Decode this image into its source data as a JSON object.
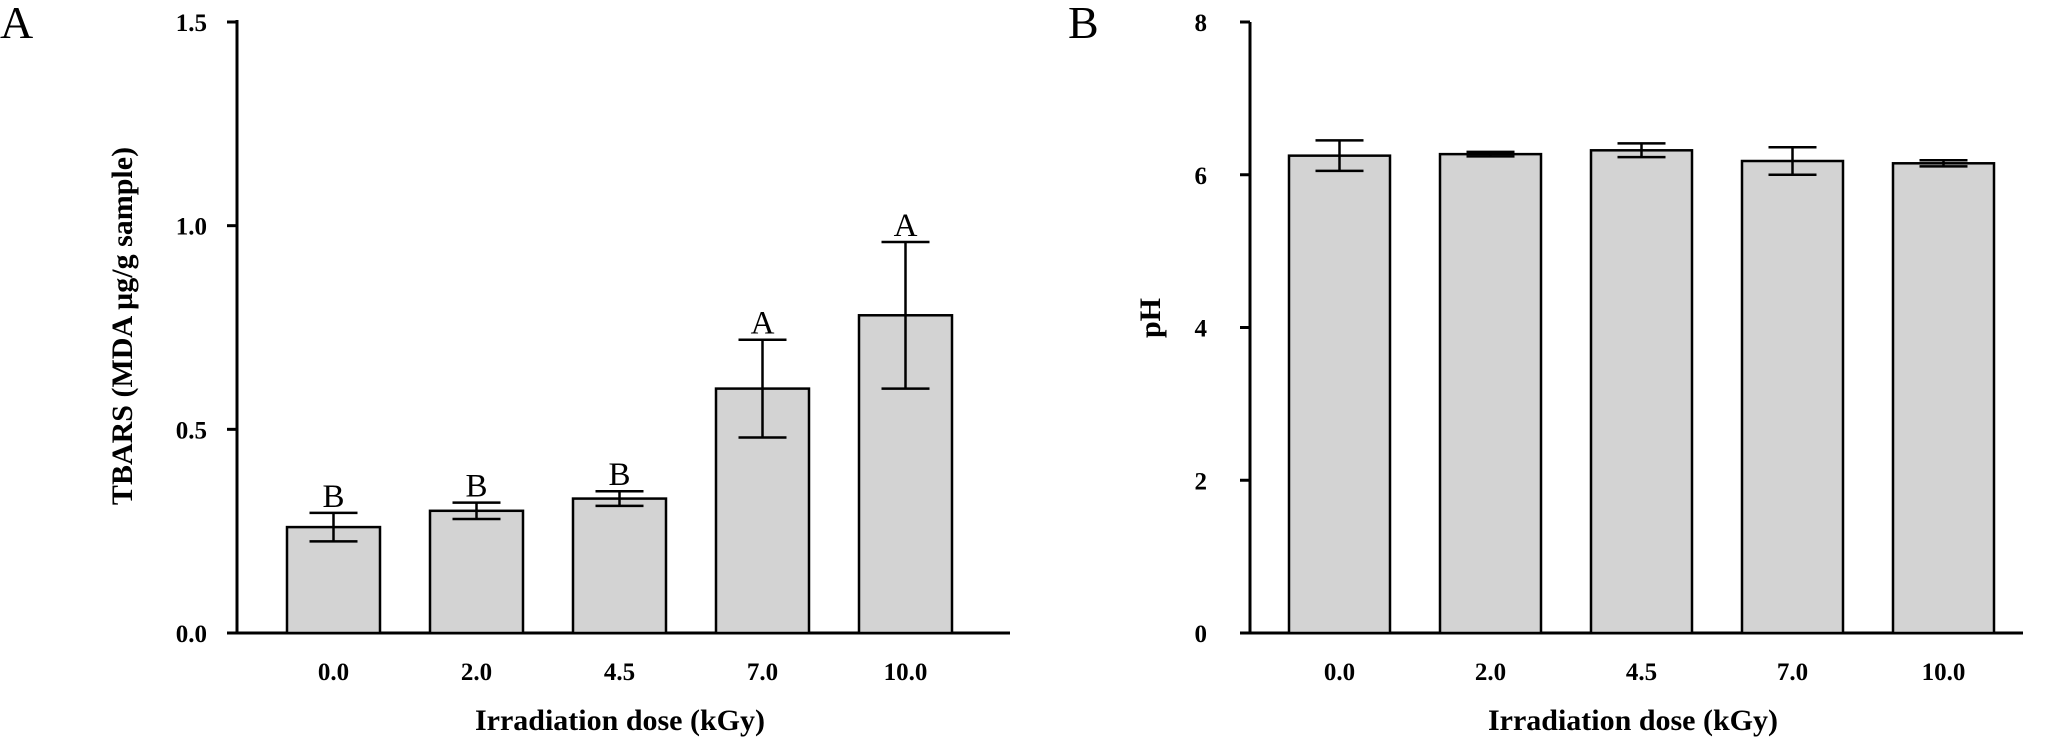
{
  "chart_data": [
    {
      "type": "bar",
      "panel_label": "A",
      "categories": [
        "0.0",
        "2.0",
        "4.5",
        "7.0",
        "10.0"
      ],
      "values": [
        0.26,
        0.3,
        0.33,
        0.6,
        0.78
      ],
      "error": [
        0.035,
        0.02,
        0.018,
        0.12,
        0.18
      ],
      "significance": [
        "B",
        "B",
        "B",
        "A",
        "A"
      ],
      "xlabel": "Irradiation dose  (kGy)",
      "ylabel": "TBARS  (MDA µg/g sample)",
      "ylim": [
        0,
        1.5
      ],
      "yticks": [
        0,
        0.5,
        1.0,
        1.5
      ],
      "ytick_labels": [
        "0.0",
        "0.5",
        "1.0",
        "1.5"
      ],
      "bar_color": "#d3d3d3"
    },
    {
      "type": "bar",
      "panel_label": "B",
      "categories": [
        "0.0",
        "2.0",
        "4.5",
        "7.0",
        "10.0"
      ],
      "values": [
        6.25,
        6.27,
        6.32,
        6.18,
        6.15
      ],
      "error": [
        0.2,
        0.03,
        0.09,
        0.18,
        0.04
      ],
      "significance": [],
      "xlabel": "Irradiation dose  (kGy)",
      "ylabel": "pH",
      "ylim": [
        0,
        8
      ],
      "yticks": [
        0,
        2,
        4,
        6,
        8
      ],
      "ytick_labels": [
        "0",
        "2",
        "4",
        "6",
        "8"
      ],
      "bar_color": "#d3d3d3"
    }
  ]
}
